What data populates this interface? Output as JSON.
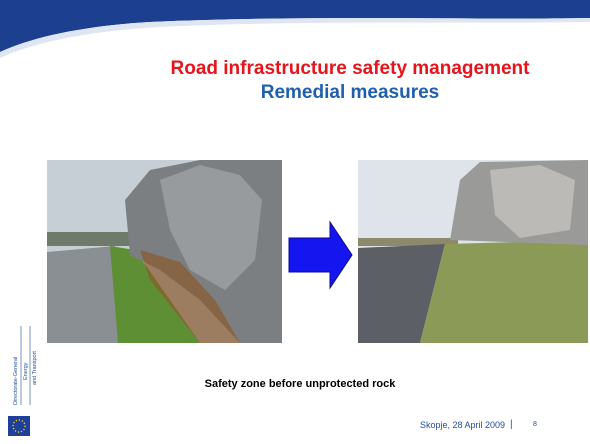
{
  "header": {
    "title": "Road infrastructure safety management",
    "subtitle": "Remedial measures"
  },
  "caption": "Safety zone before unprotected rock",
  "footer": {
    "place_date": "Skopje, 28 April 2009",
    "separator": "|",
    "page": "8"
  },
  "logo": {
    "lines": [
      "Directorate-General",
      "Energy",
      "and Transport"
    ]
  }
}
